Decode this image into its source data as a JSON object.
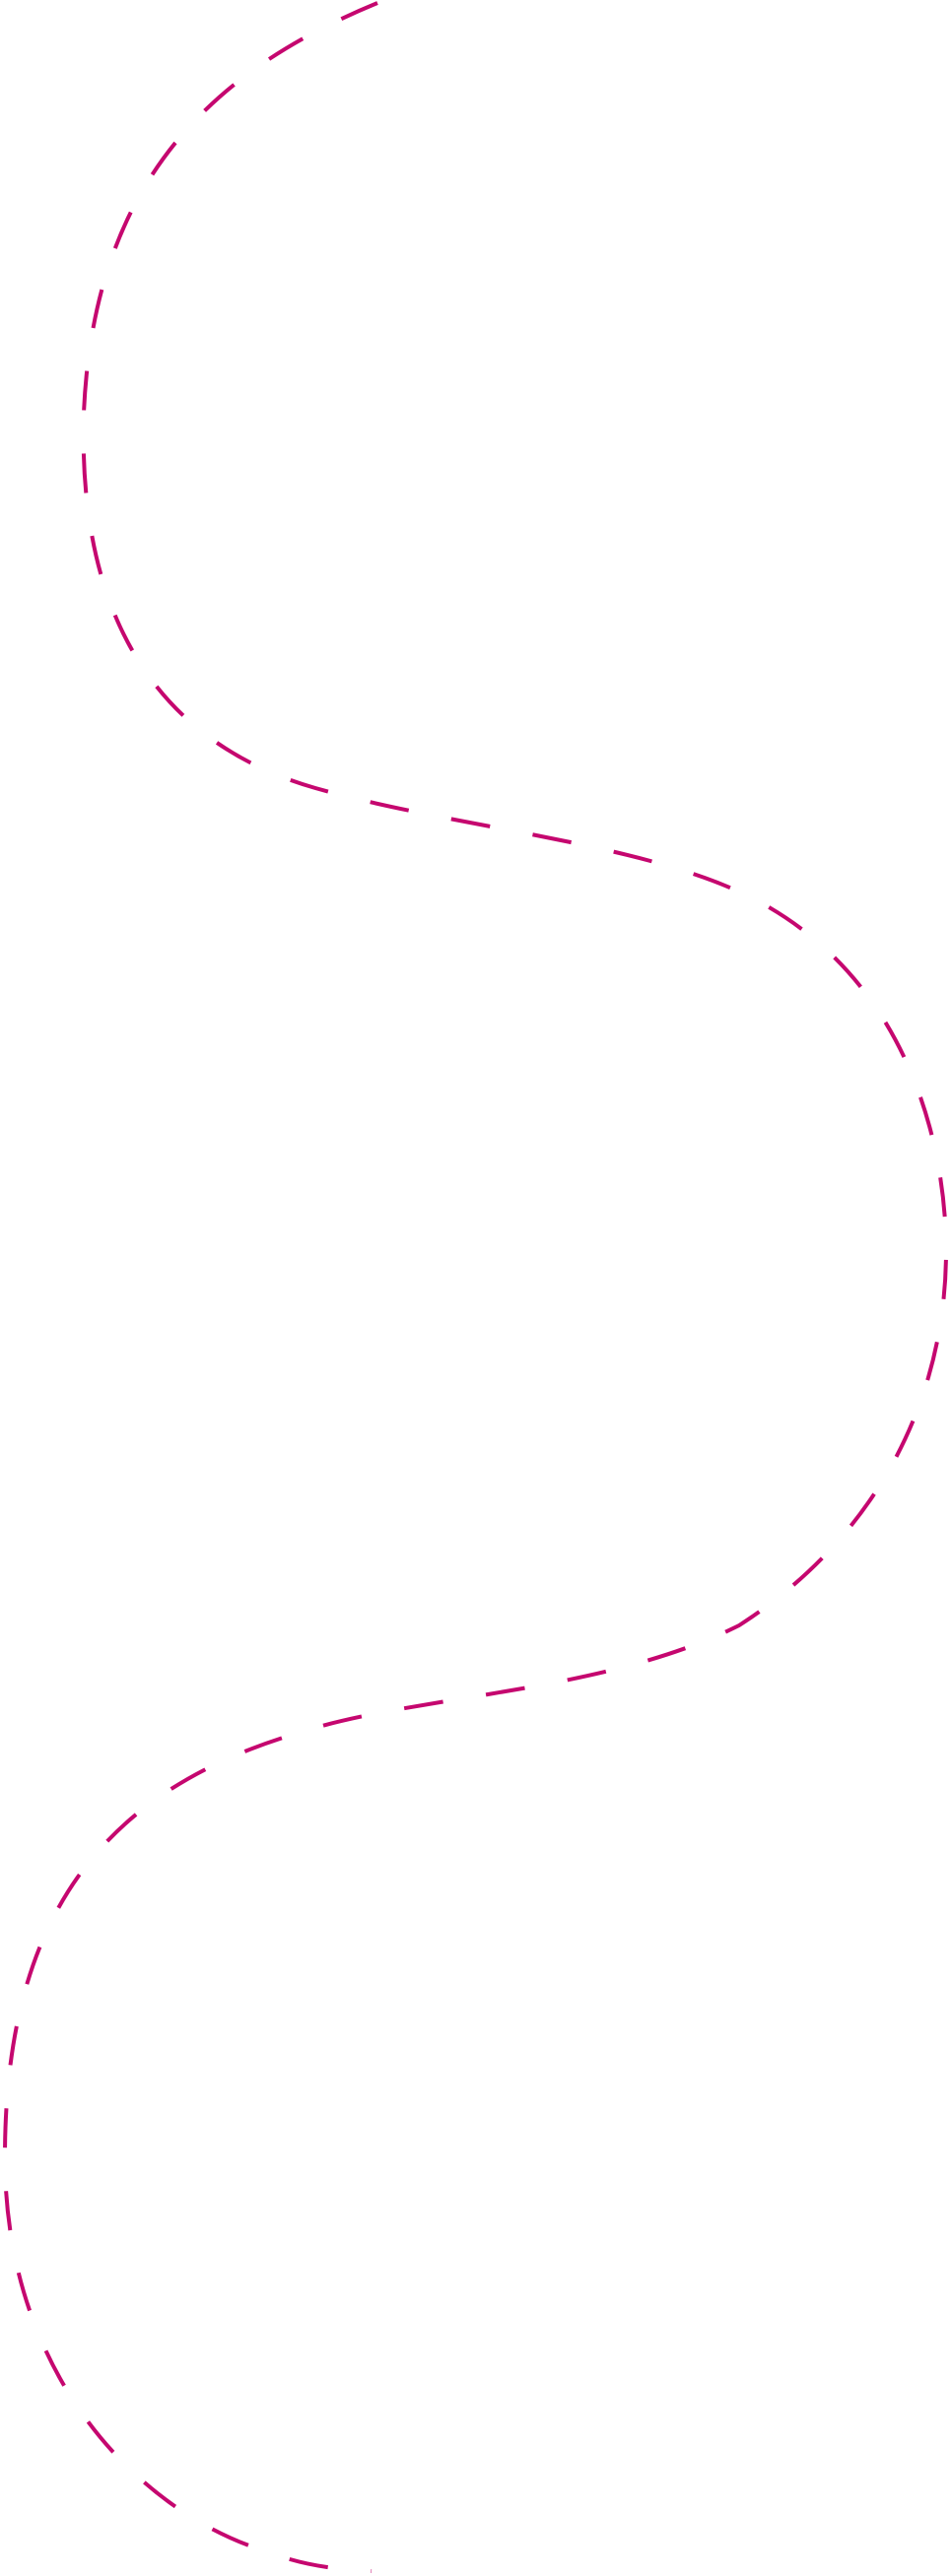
{
  "decoration": {
    "name": "dashed-wavy-path",
    "stroke_color": "#c5076f",
    "background_color": "#ffffff",
    "line_style": "dashed"
  }
}
